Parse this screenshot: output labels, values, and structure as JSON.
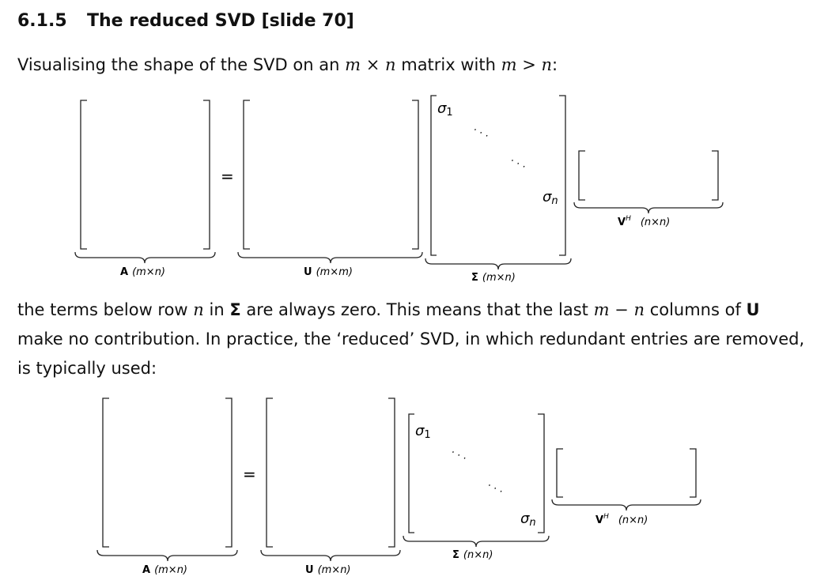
{
  "heading": {
    "number": "6.1.5",
    "title": "The reduced SVD [slide 70]"
  },
  "intro": {
    "text": "Visualising the shape of the SVD on an",
    "m": "m",
    "times": "×",
    "n": "n",
    "mid": "matrix with",
    "m2": "m",
    "gt": ">",
    "n2": "n",
    "end": ":"
  },
  "para2": {
    "line1_a": "the terms below row",
    "n1": "n",
    "in": "in",
    "sigma": "Σ",
    "line1_b": "are always zero.  This means that the last",
    "m": "m",
    "minus": "−",
    "n2": "n",
    "columns_of": "columns of",
    "U": "U",
    "line2": "make no contribution.  In practice, the ‘reduced’ SVD, in which redundant entries are removed,",
    "line3": "is typically used:"
  },
  "figure_full": {
    "equals": "=",
    "sigma1_sym": "σ",
    "sigma1_sub": "1",
    "sigman_sym": "σ",
    "sigman_sub": "n",
    "dots": "· · ·",
    "labelA": {
      "name": "A",
      "dim": "(m×n)"
    },
    "labelU": {
      "name": "U",
      "dim": "(m×m)"
    },
    "labelSigma": {
      "name": "Σ",
      "dim": "(m×n)"
    },
    "labelV": {
      "name": "V",
      "sup": "H",
      "dim": "(n×n)"
    }
  },
  "figure_reduced": {
    "equals": "=",
    "sigma1_sym": "σ",
    "sigma1_sub": "1",
    "sigman_sym": "σ",
    "sigman_sub": "n",
    "dots": "· · ·",
    "labelA": {
      "name": "A",
      "dim": "(m×n)"
    },
    "labelU": {
      "name": "U",
      "dim": "(m×n)"
    },
    "labelSigma": {
      "name": "Σ",
      "dim": "(n×n)"
    },
    "labelV": {
      "name": "V",
      "sup": "H",
      "dim": "(n×n)"
    }
  }
}
